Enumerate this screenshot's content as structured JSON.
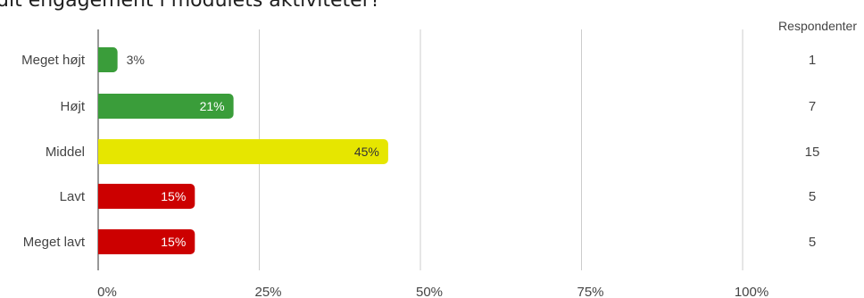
{
  "page": {
    "title": "dit engagement i modulets aktiviteter?",
    "respondents_header": "Respondenter"
  },
  "chart_data": {
    "type": "bar",
    "orientation": "horizontal",
    "title": "dit engagement i modulets aktiviteter?",
    "xlabel": "",
    "ylabel": "",
    "xlim": [
      0,
      100
    ],
    "x_ticks": [
      "0%",
      "25%",
      "50%",
      "75%",
      "100%"
    ],
    "grid": true,
    "categories": [
      "Meget højt",
      "Højt",
      "Middel",
      "Lavt",
      "Meget lavt"
    ],
    "values": [
      3,
      21,
      45,
      15,
      15
    ],
    "value_labels": [
      "3%",
      "21%",
      "45%",
      "15%",
      "15%"
    ],
    "respondents": [
      1,
      7,
      15,
      5,
      5
    ],
    "colors": [
      "#3a9d3a",
      "#3a9d3a",
      "#e6e600",
      "#cc0000",
      "#cc0000"
    ],
    "label_colors": [
      "#444444",
      "#ffffff",
      "#333333",
      "#ffffff",
      "#ffffff"
    ]
  }
}
